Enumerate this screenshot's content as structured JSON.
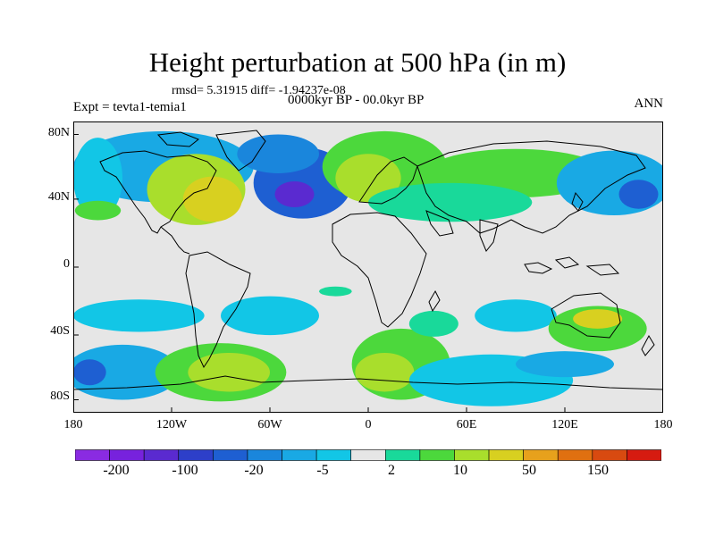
{
  "title": "Height perturbation at 500 hPa (in m)",
  "stats_line": "rmsd= 5.31915 diff= -1.94237e-08",
  "experiment": "Expt = tevta1-temia1",
  "period": "0000kyr BP - 00.0kyr BP",
  "season": "ANN",
  "lat_labels": [
    "80N",
    "40N",
    "0",
    "40S",
    "80S"
  ],
  "lon_labels": [
    "180",
    "120W",
    "60W",
    "0",
    "60E",
    "120E",
    "180"
  ],
  "colorbar": {
    "colors": [
      "#8a2be2",
      "#7722dd",
      "#5a2ad0",
      "#2d3fc9",
      "#1e5fd2",
      "#1a86dc",
      "#19a9e4",
      "#12c6e6",
      "#e6e6e6",
      "#19d99a",
      "#4cd83c",
      "#a9de2c",
      "#d8d020",
      "#e7a11c",
      "#e07010",
      "#d84a10",
      "#d61b10"
    ],
    "labels": [
      "-200",
      "-100",
      "-20",
      "-5",
      "2",
      "10",
      "50",
      "150"
    ]
  },
  "chart_data": {
    "type": "heatmap",
    "projection": "cylindrical equidistant",
    "x_range": [
      -180,
      180
    ],
    "y_range": [
      -90,
      90
    ],
    "features": [
      {
        "lon": -125,
        "lat": 62,
        "rx": 55,
        "ry": 22,
        "level": -3
      },
      {
        "lon": -40,
        "lat": 52,
        "rx": 30,
        "ry": 22,
        "level": -5
      },
      {
        "lon": -55,
        "lat": 70,
        "rx": 25,
        "ry": 12,
        "level": -4
      },
      {
        "lon": -45,
        "lat": 45,
        "rx": 12,
        "ry": 8,
        "level": -7
      },
      {
        "lon": -105,
        "lat": 48,
        "rx": 30,
        "ry": 22,
        "level": 3
      },
      {
        "lon": -95,
        "lat": 42,
        "rx": 18,
        "ry": 14,
        "level": 4
      },
      {
        "lon": 10,
        "lat": 62,
        "rx": 38,
        "ry": 22,
        "level": 2
      },
      {
        "lon": 0,
        "lat": 55,
        "rx": 20,
        "ry": 15,
        "level": 3
      },
      {
        "lon": 90,
        "lat": 58,
        "rx": 55,
        "ry": 15,
        "level": 2
      },
      {
        "lon": 50,
        "lat": 40,
        "rx": 50,
        "ry": 12,
        "level": 1
      },
      {
        "lon": 150,
        "lat": 52,
        "rx": 35,
        "ry": 20,
        "level": -3
      },
      {
        "lon": 165,
        "lat": 45,
        "rx": 12,
        "ry": 9,
        "level": -5
      },
      {
        "lon": -165,
        "lat": 55,
        "rx": 15,
        "ry": 25,
        "level": -2
      },
      {
        "lon": -165,
        "lat": 35,
        "rx": 14,
        "ry": 6,
        "level": 2
      },
      {
        "lon": -140,
        "lat": -30,
        "rx": 40,
        "ry": 10,
        "level": -2
      },
      {
        "lon": -150,
        "lat": -65,
        "rx": 35,
        "ry": 17,
        "level": -3
      },
      {
        "lon": -170,
        "lat": -65,
        "rx": 10,
        "ry": 8,
        "level": -5
      },
      {
        "lon": -60,
        "lat": -30,
        "rx": 30,
        "ry": 12,
        "level": -2
      },
      {
        "lon": -90,
        "lat": -65,
        "rx": 40,
        "ry": 18,
        "level": 2
      },
      {
        "lon": -85,
        "lat": -65,
        "rx": 25,
        "ry": 12,
        "level": 3
      },
      {
        "lon": 20,
        "lat": -60,
        "rx": 30,
        "ry": 22,
        "level": 2
      },
      {
        "lon": 10,
        "lat": -65,
        "rx": 18,
        "ry": 12,
        "level": 3
      },
      {
        "lon": 75,
        "lat": -70,
        "rx": 50,
        "ry": 16,
        "level": -2
      },
      {
        "lon": 120,
        "lat": -60,
        "rx": 30,
        "ry": 8,
        "level": -3
      },
      {
        "lon": 90,
        "lat": -30,
        "rx": 25,
        "ry": 10,
        "level": -2
      },
      {
        "lon": 140,
        "lat": -38,
        "rx": 30,
        "ry": 14,
        "level": 2
      },
      {
        "lon": 140,
        "lat": -32,
        "rx": 15,
        "ry": 6,
        "level": 4
      },
      {
        "lon": 40,
        "lat": -35,
        "rx": 15,
        "ry": 8,
        "level": 1
      },
      {
        "lon": -20,
        "lat": -15,
        "rx": 10,
        "ry": 3,
        "level": 1
      }
    ]
  }
}
